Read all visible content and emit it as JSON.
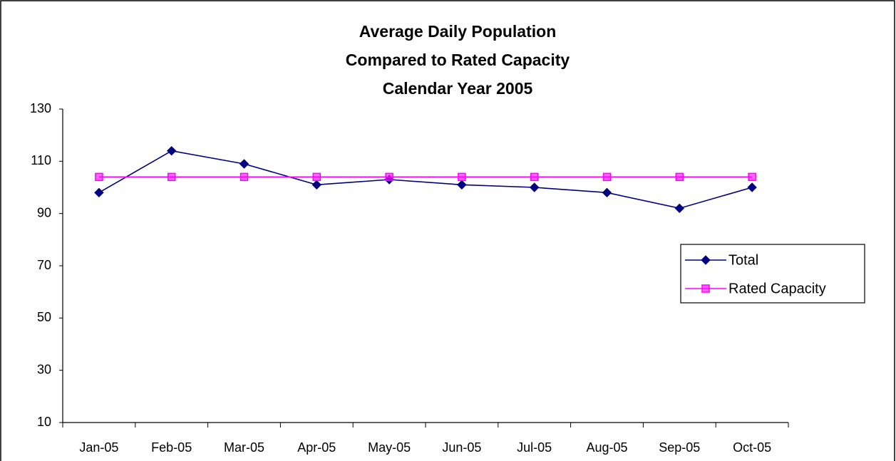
{
  "chart_data": {
    "type": "line",
    "title": [
      "Average Daily Population",
      "Compared to Rated Capacity",
      "Calendar Year 2005"
    ],
    "categories": [
      "Jan-05",
      "Feb-05",
      "Mar-05",
      "Apr-05",
      "May-05",
      "Jun-05",
      "Jul-05",
      "Aug-05",
      "Sep-05",
      "Oct-05"
    ],
    "series": [
      {
        "name": "Total",
        "color": "#000080",
        "marker": "diamond",
        "values": [
          98,
          114,
          109,
          101,
          103,
          101,
          100,
          98,
          92,
          100
        ]
      },
      {
        "name": "Rated Capacity",
        "color": "#ff00ff",
        "marker": "square",
        "values": [
          104,
          104,
          104,
          104,
          104,
          104,
          104,
          104,
          104,
          104
        ]
      }
    ],
    "ylim": [
      10,
      130
    ],
    "yticks": [
      10,
      30,
      50,
      70,
      90,
      110,
      130
    ],
    "grid": false,
    "legend": "right"
  }
}
